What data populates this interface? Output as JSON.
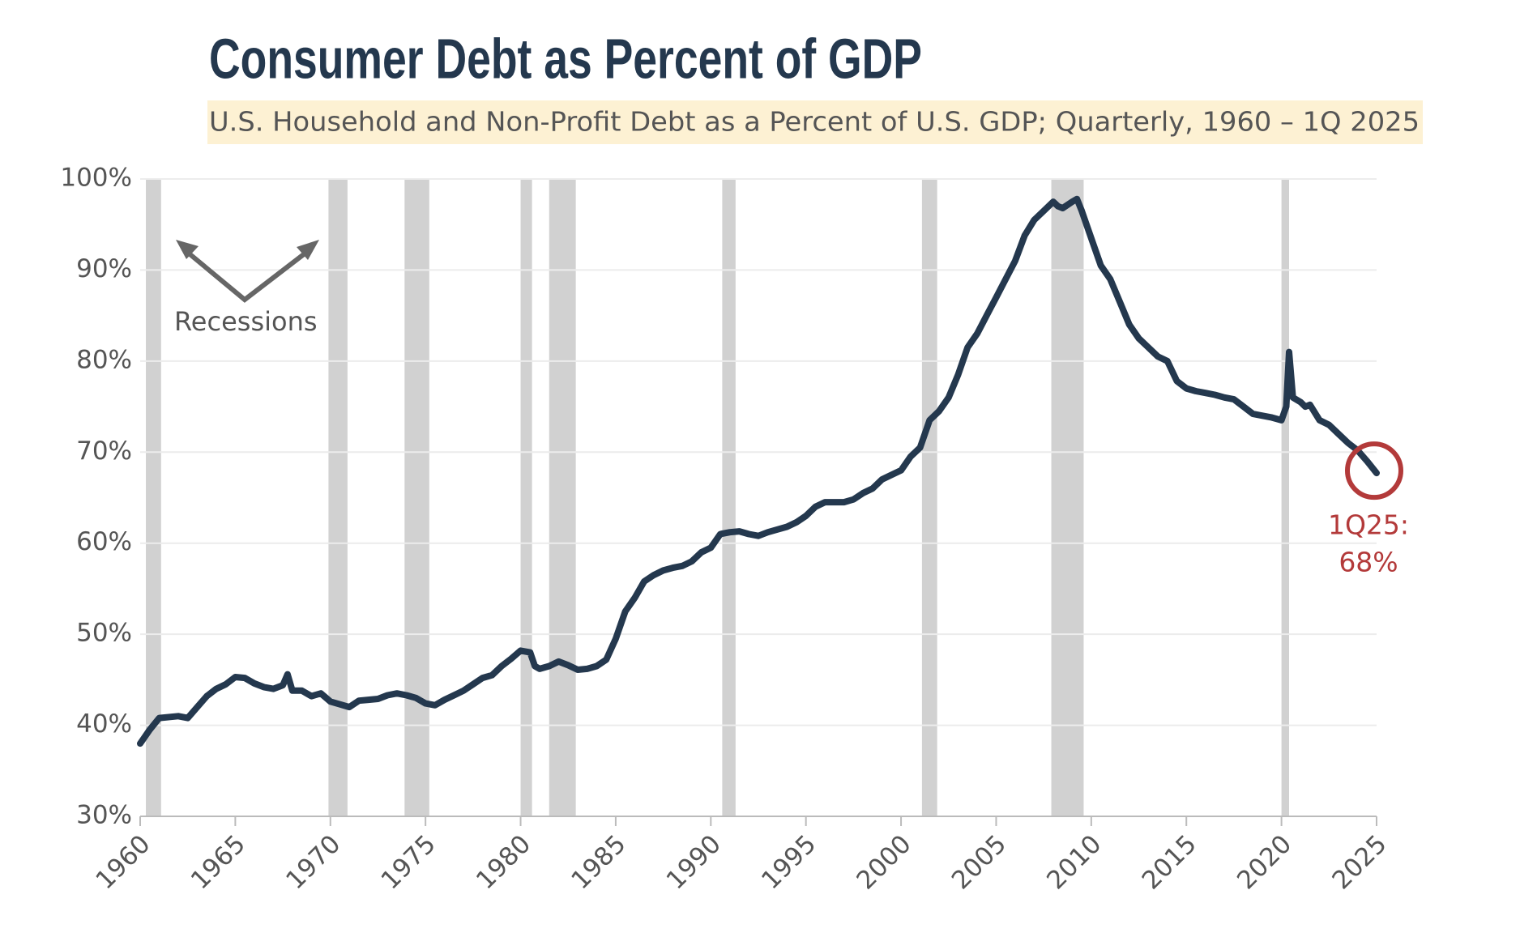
{
  "chart_data": {
    "type": "line",
    "title": "Consumer Debt as Percent of GDP",
    "subtitle": "U.S. Household and Non-Profit Debt as a Percent of U.S. GDP; Quarterly, 1960 – 1Q 2025",
    "x": [
      1960,
      1960.5,
      1961,
      1962,
      1962.5,
      1963,
      1963.5,
      1964,
      1964.5,
      1965,
      1965.5,
      1966,
      1966.5,
      1967,
      1967.5,
      1967.75,
      1968,
      1968.5,
      1969,
      1969.5,
      1970,
      1970.5,
      1971,
      1971.5,
      1972,
      1972.5,
      1973,
      1973.5,
      1974,
      1974.5,
      1975,
      1975.5,
      1976,
      1976.5,
      1977,
      1977.5,
      1978,
      1978.5,
      1979,
      1979.5,
      1980,
      1980.5,
      1980.75,
      1981,
      1981.5,
      1982,
      1982.5,
      1983,
      1983.5,
      1984,
      1984.5,
      1985,
      1985.5,
      1986,
      1986.5,
      1987,
      1987.5,
      1988,
      1988.5,
      1989,
      1989.5,
      1990,
      1990.5,
      1991,
      1991.5,
      1992,
      1992.5,
      1993,
      1993.5,
      1994,
      1994.5,
      1995,
      1995.5,
      1996,
      1996.5,
      1997,
      1997.5,
      1998,
      1998.5,
      1999,
      1999.5,
      2000,
      2000.5,
      2001,
      2001.5,
      2002,
      2002.5,
      2003,
      2003.5,
      2004,
      2004.5,
      2005,
      2005.5,
      2006,
      2006.5,
      2007,
      2007.5,
      2008,
      2008.25,
      2008.5,
      2009,
      2009.25,
      2009.5,
      2010,
      2010.5,
      2011,
      2011.5,
      2012,
      2012.5,
      2013,
      2013.5,
      2014,
      2014.5,
      2015,
      2015.5,
      2016,
      2016.5,
      2017,
      2017.5,
      2018,
      2018.5,
      2019,
      2019.5,
      2020,
      2020.25,
      2020.4,
      2020.6,
      2021,
      2021.25,
      2021.5,
      2022,
      2022.5,
      2023,
      2023.5,
      2024,
      2024.5,
      2025
    ],
    "series": [
      {
        "name": "Household and Non-Profit Debt % of GDP",
        "color": "#24384e",
        "values": [
          38,
          39.5,
          40.8,
          41,
          40.8,
          42,
          43.2,
          44,
          44.5,
          45.3,
          45.2,
          44.6,
          44.2,
          44,
          44.4,
          45.6,
          43.8,
          43.8,
          43.2,
          43.5,
          42.6,
          42.3,
          42,
          42.7,
          42.8,
          42.9,
          43.3,
          43.5,
          43.3,
          43,
          42.4,
          42.2,
          42.8,
          43.3,
          43.8,
          44.5,
          45.2,
          45.5,
          46.5,
          47.3,
          48.2,
          48,
          46.5,
          46.2,
          46.5,
          47,
          46.6,
          46.1,
          46.2,
          46.5,
          47.2,
          49.5,
          52.5,
          54,
          55.8,
          56.5,
          57,
          57.3,
          57.5,
          58,
          59,
          59.5,
          61,
          61.2,
          61.3,
          61,
          60.8,
          61.2,
          61.5,
          61.8,
          62.3,
          63,
          64,
          64.5,
          64.5,
          64.5,
          64.8,
          65.5,
          66,
          67,
          67.5,
          68,
          69.5,
          70.5,
          73.5,
          74.5,
          76,
          78.5,
          81.5,
          83,
          85,
          87,
          89,
          91,
          93.8,
          95.5,
          96.5,
          97.5,
          97,
          96.8,
          97.5,
          97.8,
          96.5,
          93.5,
          90.5,
          89,
          86.5,
          84,
          82.5,
          81.5,
          80.5,
          80,
          77.8,
          77,
          76.7,
          76.5,
          76.3,
          76,
          75.8,
          75,
          74.2,
          74,
          73.8,
          73.5,
          75,
          81,
          76,
          75.5,
          75,
          75.2,
          73.5,
          73,
          72,
          71,
          70.2,
          69,
          67.7
        ]
      }
    ],
    "recessions": [
      [
        1960.3,
        1961.1
      ],
      [
        1969.9,
        1970.9
      ],
      [
        1973.9,
        1975.2
      ],
      [
        1980.0,
        1980.6
      ],
      [
        1981.5,
        1982.9
      ],
      [
        1990.6,
        1991.3
      ],
      [
        2001.1,
        2001.9
      ],
      [
        2007.9,
        2009.6
      ],
      [
        2020.0,
        2020.4
      ]
    ],
    "recession_color": "#d1d1d1",
    "recession_label": "Recessions",
    "annotation": [
      "1Q25:",
      "68%"
    ],
    "annotation_color": "#b33a3a",
    "xlim": [
      1960,
      2025
    ],
    "xticks": [
      1960,
      1965,
      1970,
      1975,
      1980,
      1985,
      1990,
      1995,
      2000,
      2005,
      2010,
      2015,
      2020,
      2025
    ],
    "ylim": [
      30,
      100
    ],
    "yticks": [
      {
        "value": 30,
        "label": "30%"
      },
      {
        "value": 40,
        "label": "40%"
      },
      {
        "value": 50,
        "label": "50%"
      },
      {
        "value": 60,
        "label": "60%"
      },
      {
        "value": 70,
        "label": "70%"
      },
      {
        "value": 80,
        "label": "80%"
      },
      {
        "value": 90,
        "label": "90%"
      },
      {
        "value": 100,
        "label": "100%"
      }
    ],
    "grid": true
  }
}
